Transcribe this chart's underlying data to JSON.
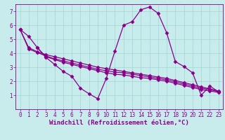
{
  "background_color": "#c8ecec",
  "line_color": "#880088",
  "marker": "D",
  "markersize": 2.5,
  "linewidth": 0.9,
  "xlabel": "Windchill (Refroidissement éolien,°C)",
  "xlabel_fontsize": 6.5,
  "xlim": [
    -0.5,
    23.5
  ],
  "ylim": [
    0,
    7.5
  ],
  "xticks": [
    0,
    1,
    2,
    3,
    4,
    5,
    6,
    7,
    8,
    9,
    10,
    11,
    12,
    13,
    14,
    15,
    16,
    17,
    18,
    19,
    20,
    21,
    22,
    23
  ],
  "yticks": [
    1,
    2,
    3,
    4,
    5,
    6,
    7
  ],
  "tick_fontsize": 5.5,
  "grid_color": "#a0d4d4",
  "lines": [
    {
      "x": [
        0,
        1,
        2,
        3,
        4,
        5,
        6,
        7,
        8,
        9,
        10,
        11,
        12,
        13,
        14,
        15,
        16,
        17,
        18,
        19,
        20,
        21,
        22,
        23
      ],
      "y": [
        5.7,
        5.2,
        4.4,
        3.7,
        3.2,
        2.7,
        2.35,
        1.5,
        1.1,
        0.75,
        2.2,
        4.15,
        6.0,
        6.25,
        7.1,
        7.3,
        6.85,
        5.45,
        3.4,
        3.05,
        2.6,
        1.0,
        1.65,
        1.25
      ]
    },
    {
      "x": [
        0,
        1,
        2,
        3,
        4,
        5,
        6,
        7,
        8,
        9,
        10,
        11,
        12,
        13,
        14,
        15,
        16,
        17,
        18,
        19,
        20,
        21,
        22,
        23
      ],
      "y": [
        5.7,
        4.4,
        4.1,
        3.9,
        3.75,
        3.6,
        3.45,
        3.3,
        3.15,
        3.0,
        2.9,
        2.8,
        2.7,
        2.6,
        2.5,
        2.4,
        2.3,
        2.2,
        2.05,
        1.9,
        1.75,
        1.6,
        1.45,
        1.3
      ]
    },
    {
      "x": [
        0,
        1,
        2,
        3,
        4,
        5,
        6,
        7,
        8,
        9,
        10,
        11,
        12,
        13,
        14,
        15,
        16,
        17,
        18,
        19,
        20,
        21,
        22,
        23
      ],
      "y": [
        5.7,
        4.3,
        4.05,
        3.8,
        3.6,
        3.45,
        3.3,
        3.15,
        3.0,
        2.85,
        2.75,
        2.65,
        2.6,
        2.5,
        2.4,
        2.3,
        2.2,
        2.1,
        1.95,
        1.8,
        1.65,
        1.5,
        1.4,
        1.25
      ]
    },
    {
      "x": [
        2,
        3,
        4,
        5,
        6,
        7,
        8,
        9,
        10,
        11,
        12,
        13,
        14,
        15,
        16,
        17,
        18,
        19,
        20,
        21,
        22,
        23
      ],
      "y": [
        4.4,
        3.75,
        3.55,
        3.35,
        3.2,
        3.05,
        2.9,
        2.75,
        2.6,
        2.5,
        2.45,
        2.35,
        2.25,
        2.2,
        2.1,
        2.0,
        1.85,
        1.7,
        1.55,
        1.4,
        1.3,
        1.2
      ]
    }
  ]
}
